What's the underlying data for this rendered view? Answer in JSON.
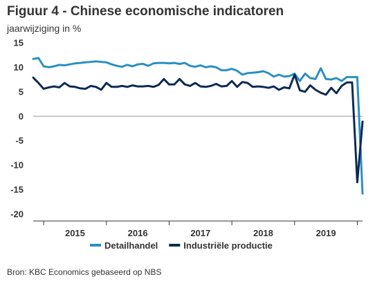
{
  "title": "Figuur 4 - Chinese economische indicatoren",
  "subtitle": "jaarwijziging in %",
  "source": "Bron: KBC Economics gebaseerd op NBS",
  "colors": {
    "retail": "#2a90c0",
    "industry": "#0d2a54",
    "zero_line": "#999999",
    "axis": "#333333"
  },
  "chart_data": {
    "type": "line",
    "title": "Figuur 4 - Chinese economische indicatoren",
    "ylabel": "jaarwijziging in %",
    "xlabel": "",
    "ylim": [
      -20,
      15
    ],
    "yticks": [
      15,
      10,
      5,
      0,
      -5,
      -10,
      -15,
      -20
    ],
    "grid": false,
    "legend_position": "bottom",
    "x_start": "2014-11",
    "x_end": "2020-02",
    "x_year_labels": [
      "2015",
      "2016",
      "2017",
      "2018",
      "2019"
    ],
    "series": [
      {
        "name": "Detailhandel",
        "color": "#2a90c0",
        "x": [
          "2014-11",
          "2014-12",
          "2015-01",
          "2015-02",
          "2015-03",
          "2015-04",
          "2015-05",
          "2015-06",
          "2015-07",
          "2015-08",
          "2015-09",
          "2015-10",
          "2015-11",
          "2015-12",
          "2016-01",
          "2016-02",
          "2016-03",
          "2016-04",
          "2016-05",
          "2016-06",
          "2016-07",
          "2016-08",
          "2016-09",
          "2016-10",
          "2016-11",
          "2016-12",
          "2017-01",
          "2017-02",
          "2017-03",
          "2017-04",
          "2017-05",
          "2017-06",
          "2017-07",
          "2017-08",
          "2017-09",
          "2017-10",
          "2017-11",
          "2017-12",
          "2018-01",
          "2018-02",
          "2018-03",
          "2018-04",
          "2018-05",
          "2018-06",
          "2018-07",
          "2018-08",
          "2018-09",
          "2018-10",
          "2018-11",
          "2018-12",
          "2019-01",
          "2019-02",
          "2019-03",
          "2019-04",
          "2019-05",
          "2019-06",
          "2019-07",
          "2019-08",
          "2019-09",
          "2019-10",
          "2019-11",
          "2019-12",
          "2020-01",
          "2020-02"
        ],
        "values": [
          11.7,
          11.9,
          10.2,
          10.0,
          10.2,
          10.5,
          10.4,
          10.6,
          10.8,
          10.9,
          11.0,
          11.1,
          11.2,
          11.1,
          11.0,
          10.6,
          10.3,
          10.1,
          10.5,
          10.2,
          10.6,
          10.7,
          10.3,
          10.8,
          10.9,
          10.9,
          10.8,
          10.9,
          10.7,
          10.9,
          10.3,
          10.1,
          10.4,
          10.0,
          10.2,
          10.0,
          9.4,
          9.4,
          9.7,
          9.3,
          8.5,
          8.8,
          8.9,
          9.0,
          9.2,
          8.8,
          8.1,
          8.5,
          8.1,
          8.2,
          8.7,
          7.2,
          8.7,
          7.8,
          7.6,
          9.8,
          7.6,
          7.5,
          7.8,
          7.2,
          8.0,
          8.0,
          8.0,
          -15.8
        ]
      },
      {
        "name": "Industriële productie",
        "color": "#0d2a54",
        "x": [
          "2014-11",
          "2014-12",
          "2015-01",
          "2015-02",
          "2015-03",
          "2015-04",
          "2015-05",
          "2015-06",
          "2015-07",
          "2015-08",
          "2015-09",
          "2015-10",
          "2015-11",
          "2015-12",
          "2016-01",
          "2016-02",
          "2016-03",
          "2016-04",
          "2016-05",
          "2016-06",
          "2016-07",
          "2016-08",
          "2016-09",
          "2016-10",
          "2016-11",
          "2016-12",
          "2017-01",
          "2017-02",
          "2017-03",
          "2017-04",
          "2017-05",
          "2017-06",
          "2017-07",
          "2017-08",
          "2017-09",
          "2017-10",
          "2017-11",
          "2017-12",
          "2018-01",
          "2018-02",
          "2018-03",
          "2018-04",
          "2018-05",
          "2018-06",
          "2018-07",
          "2018-08",
          "2018-09",
          "2018-10",
          "2018-11",
          "2018-12",
          "2019-01",
          "2019-02",
          "2019-03",
          "2019-04",
          "2019-05",
          "2019-06",
          "2019-07",
          "2019-08",
          "2019-09",
          "2019-10",
          "2019-11",
          "2019-12",
          "2020-01",
          "2020-02"
        ],
        "values": [
          7.9,
          6.8,
          5.6,
          5.9,
          6.1,
          5.9,
          6.8,
          6.1,
          6.0,
          5.7,
          5.6,
          6.2,
          6.0,
          5.4,
          6.8,
          6.0,
          6.0,
          6.2,
          6.0,
          6.3,
          6.1,
          6.1,
          6.2,
          6.0,
          6.4,
          7.6,
          6.5,
          6.5,
          7.6,
          6.5,
          6.2,
          6.8,
          6.1,
          6.0,
          6.2,
          6.6,
          6.1,
          6.2,
          7.2,
          6.0,
          7.0,
          6.8,
          6.0,
          6.1,
          6.0,
          5.8,
          6.1,
          5.4,
          5.9,
          5.7,
          8.5,
          5.3,
          5.0,
          6.3,
          5.4,
          4.8,
          4.4,
          5.8,
          4.7,
          6.2,
          6.9,
          6.9,
          -13.5,
          -1.1
        ]
      }
    ]
  }
}
